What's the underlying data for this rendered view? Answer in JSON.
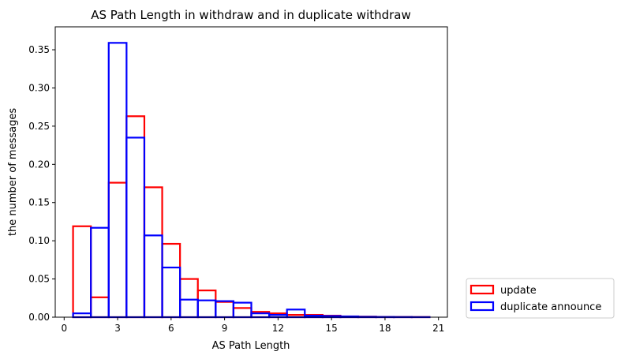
{
  "chart_data": {
    "type": "bar",
    "title": "AS Path Length in withdraw and in duplicate withdraw",
    "xlabel": "AS Path Length",
    "ylabel": "the number of messages",
    "xlim": [
      -0.5,
      21.5
    ],
    "ylim": [
      0,
      0.38
    ],
    "xticks": [
      0,
      3,
      6,
      9,
      12,
      15,
      18,
      21
    ],
    "xtick_labels": [
      "0",
      "3",
      "6",
      "9",
      "12",
      "15",
      "18",
      "21"
    ],
    "yticks": [
      0.0,
      0.05,
      0.1,
      0.15,
      0.2,
      0.25,
      0.3,
      0.35
    ],
    "ytick_labels": [
      "0.00",
      "0.05",
      "0.10",
      "0.15",
      "0.20",
      "0.25",
      "0.30",
      "0.35"
    ],
    "bin_edges": [
      0.5,
      1.5,
      2.5,
      3.5,
      4.5,
      5.5,
      6.5,
      7.5,
      8.5,
      9.5,
      10.5,
      11.5,
      12.5,
      13.5,
      14.5,
      15.5,
      16.5,
      17.5,
      18.5,
      19.5,
      20.5
    ],
    "series": [
      {
        "name": "update",
        "color": "#ff0000",
        "values": [
          0.119,
          0.026,
          0.176,
          0.263,
          0.17,
          0.096,
          0.05,
          0.035,
          0.02,
          0.012,
          0.007,
          0.005,
          0.003,
          0.003,
          0.002,
          0.001,
          0.0007,
          0.0004,
          0.0003,
          0.0002
        ]
      },
      {
        "name": "duplicate announce",
        "color": "#0000ff",
        "values": [
          0.005,
          0.117,
          0.359,
          0.235,
          0.107,
          0.065,
          0.023,
          0.022,
          0.021,
          0.019,
          0.005,
          0.003,
          0.01,
          0.002,
          0.0015,
          0.001,
          0.0005,
          0.0003,
          0.0002,
          0.0001
        ]
      }
    ],
    "legend_position": "lower-right-outside"
  }
}
